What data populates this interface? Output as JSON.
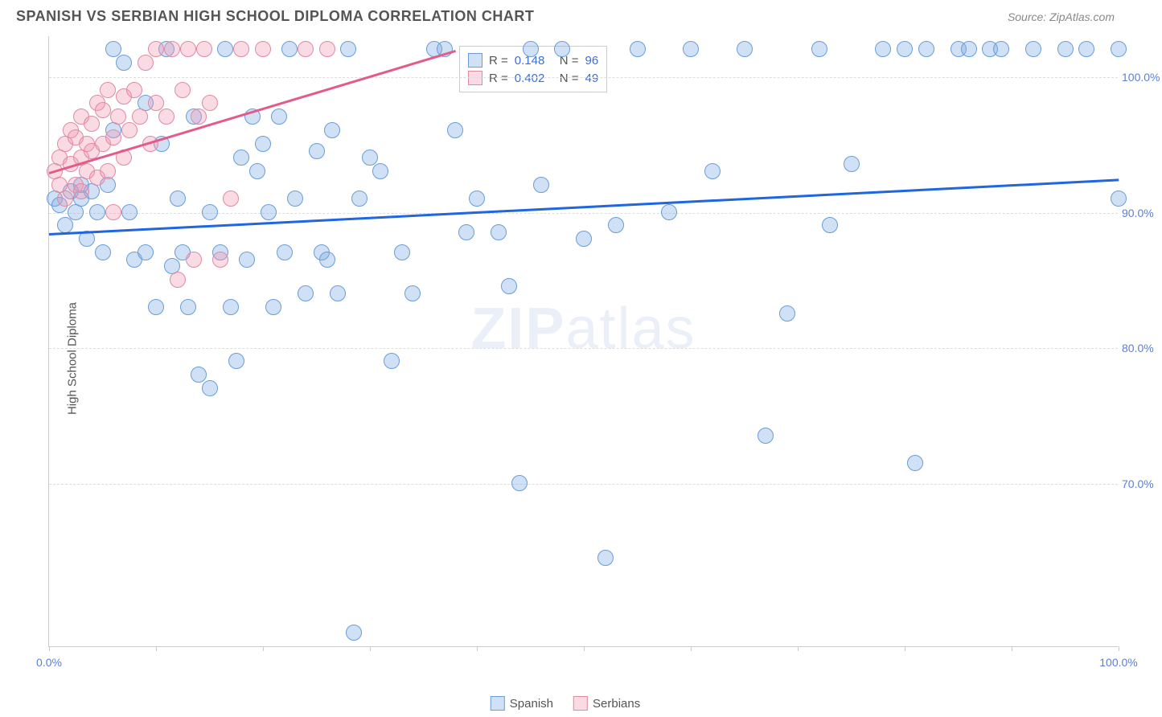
{
  "title": "SPANISH VS SERBIAN HIGH SCHOOL DIPLOMA CORRELATION CHART",
  "source": "Source: ZipAtlas.com",
  "ylabel": "High School Diploma",
  "watermark_bold": "ZIP",
  "watermark_light": "atlas",
  "chart": {
    "type": "scatter",
    "xlim": [
      0,
      100
    ],
    "ylim": [
      58,
      103
    ],
    "yticks": [
      70,
      80,
      90,
      100
    ],
    "ytick_labels": [
      "70.0%",
      "80.0%",
      "90.0%",
      "100.0%"
    ],
    "xticks": [
      0,
      10,
      20,
      30,
      40,
      50,
      60,
      70,
      80,
      90,
      100
    ],
    "xtick_labels_shown": {
      "0": "0.0%",
      "100": "100.0%"
    },
    "background_color": "#ffffff",
    "grid_color": "#dddddd",
    "axis_color": "#cccccc",
    "marker_radius": 10,
    "marker_border_width": 1,
    "series": [
      {
        "name": "Spanish",
        "fill_color": "rgba(120,170,230,0.35)",
        "stroke_color": "#6a9dd8",
        "trend_color": "#1f66e0",
        "trend": {
          "x1": 0,
          "y1": 88.5,
          "x2": 100,
          "y2": 92.5
        },
        "stats": {
          "R": "0.148",
          "N": "96"
        },
        "points": [
          [
            0.5,
            91
          ],
          [
            1,
            90.5
          ],
          [
            1.5,
            89
          ],
          [
            2,
            91.5
          ],
          [
            2.5,
            90
          ],
          [
            3,
            92
          ],
          [
            3,
            91
          ],
          [
            3.5,
            88
          ],
          [
            4,
            91.5
          ],
          [
            4.5,
            90
          ],
          [
            5,
            87
          ],
          [
            5.5,
            92
          ],
          [
            6,
            102
          ],
          [
            6,
            96
          ],
          [
            7,
            101
          ],
          [
            7.5,
            90
          ],
          [
            8,
            86.5
          ],
          [
            9,
            98
          ],
          [
            9,
            87
          ],
          [
            10,
            83
          ],
          [
            10.5,
            95
          ],
          [
            11,
            102
          ],
          [
            11.5,
            86
          ],
          [
            12,
            91
          ],
          [
            12.5,
            87
          ],
          [
            13,
            83
          ],
          [
            13.5,
            97
          ],
          [
            14,
            78
          ],
          [
            15,
            77
          ],
          [
            15,
            90
          ],
          [
            16,
            87
          ],
          [
            16.5,
            102
          ],
          [
            17,
            83
          ],
          [
            17.5,
            79
          ],
          [
            18,
            94
          ],
          [
            18.5,
            86.5
          ],
          [
            19,
            97
          ],
          [
            19.5,
            93
          ],
          [
            20,
            95
          ],
          [
            20.5,
            90
          ],
          [
            21,
            83
          ],
          [
            21.5,
            97
          ],
          [
            22,
            87
          ],
          [
            22.5,
            102
          ],
          [
            23,
            91
          ],
          [
            24,
            84
          ],
          [
            25,
            94.5
          ],
          [
            25.5,
            87
          ],
          [
            26,
            86.5
          ],
          [
            26.5,
            96
          ],
          [
            27,
            84
          ],
          [
            28,
            102
          ],
          [
            28.5,
            59
          ],
          [
            29,
            91
          ],
          [
            30,
            94
          ],
          [
            31,
            93
          ],
          [
            32,
            79
          ],
          [
            33,
            87
          ],
          [
            34,
            84
          ],
          [
            36,
            102
          ],
          [
            37,
            102
          ],
          [
            38,
            96
          ],
          [
            39,
            88.5
          ],
          [
            40,
            91
          ],
          [
            42,
            88.5
          ],
          [
            43,
            84.5
          ],
          [
            44,
            70
          ],
          [
            45,
            102
          ],
          [
            46,
            92
          ],
          [
            48,
            102
          ],
          [
            50,
            88
          ],
          [
            52,
            64.5
          ],
          [
            53,
            89
          ],
          [
            55,
            102
          ],
          [
            58,
            90
          ],
          [
            60,
            102
          ],
          [
            62,
            93
          ],
          [
            65,
            102
          ],
          [
            67,
            73.5
          ],
          [
            69,
            82.5
          ],
          [
            72,
            102
          ],
          [
            73,
            89
          ],
          [
            75,
            93.5
          ],
          [
            78,
            102
          ],
          [
            80,
            102
          ],
          [
            81,
            71.5
          ],
          [
            82,
            102
          ],
          [
            85,
            102
          ],
          [
            86,
            102
          ],
          [
            88,
            102
          ],
          [
            89,
            102
          ],
          [
            92,
            102
          ],
          [
            95,
            102
          ],
          [
            97,
            102
          ],
          [
            100,
            102
          ],
          [
            100,
            91
          ]
        ]
      },
      {
        "name": "Serbians",
        "fill_color": "rgba(240,150,175,0.35)",
        "stroke_color": "#e08aa5",
        "trend_color": "#e35b8a",
        "trend": {
          "x1": 0,
          "y1": 93,
          "x2": 38,
          "y2": 102
        },
        "stats": {
          "R": "0.402",
          "N": "49"
        },
        "points": [
          [
            0.5,
            93
          ],
          [
            1,
            92
          ],
          [
            1,
            94
          ],
          [
            1.5,
            91
          ],
          [
            1.5,
            95
          ],
          [
            2,
            93.5
          ],
          [
            2,
            96
          ],
          [
            2.5,
            92
          ],
          [
            2.5,
            95.5
          ],
          [
            3,
            94
          ],
          [
            3,
            97
          ],
          [
            3,
            91.5
          ],
          [
            3.5,
            93
          ],
          [
            3.5,
            95
          ],
          [
            4,
            94.5
          ],
          [
            4,
            96.5
          ],
          [
            4.5,
            92.5
          ],
          [
            4.5,
            98
          ],
          [
            5,
            95
          ],
          [
            5,
            97.5
          ],
          [
            5.5,
            93
          ],
          [
            5.5,
            99
          ],
          [
            6,
            95.5
          ],
          [
            6,
            90
          ],
          [
            6.5,
            97
          ],
          [
            7,
            94
          ],
          [
            7,
            98.5
          ],
          [
            7.5,
            96
          ],
          [
            8,
            99
          ],
          [
            8.5,
            97
          ],
          [
            9,
            101
          ],
          [
            9.5,
            95
          ],
          [
            10,
            98
          ],
          [
            10,
            102
          ],
          [
            11,
            97
          ],
          [
            11.5,
            102
          ],
          [
            12,
            85
          ],
          [
            12.5,
            99
          ],
          [
            13,
            102
          ],
          [
            13.5,
            86.5
          ],
          [
            14,
            97
          ],
          [
            14.5,
            102
          ],
          [
            15,
            98
          ],
          [
            16,
            86.5
          ],
          [
            17,
            91
          ],
          [
            18,
            102
          ],
          [
            20,
            102
          ],
          [
            24,
            102
          ],
          [
            26,
            102
          ]
        ]
      }
    ]
  },
  "stats_labels": {
    "R": "R =",
    "N": "N ="
  },
  "legend": {
    "spanish": "Spanish",
    "serbians": "Serbians"
  }
}
